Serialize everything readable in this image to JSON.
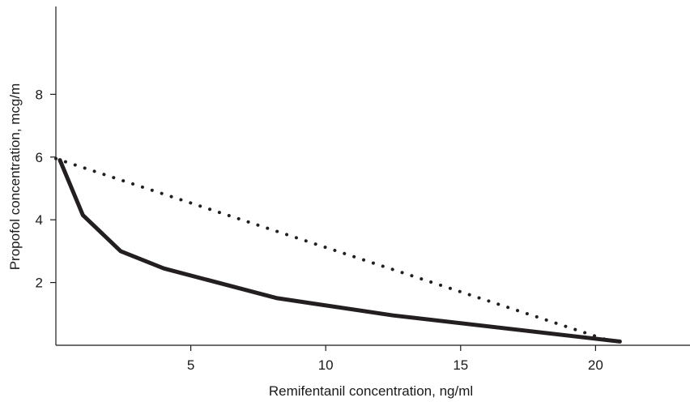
{
  "chart_data": {
    "type": "line",
    "xlabel": "Remifentanil concentration, ng/ml",
    "ylabel": "Propofol concentration, mcg/m",
    "xlim": [
      0,
      23.5
    ],
    "ylim": [
      0,
      10.8
    ],
    "x_ticks": [
      5,
      10,
      15,
      20
    ],
    "y_ticks": [
      2,
      4,
      6,
      8
    ],
    "grid": false,
    "legend": "none",
    "series": [
      {
        "style": "solid",
        "color": "#231f20",
        "points": [
          [
            0.15,
            5.9
          ],
          [
            1.0,
            4.15
          ],
          [
            2.4,
            3.0
          ],
          [
            4.0,
            2.45
          ],
          [
            8.2,
            1.5
          ],
          [
            12.5,
            0.95
          ],
          [
            20.9,
            0.12
          ]
        ]
      },
      {
        "style": "dotted",
        "color": "#231f20",
        "points": [
          [
            0.0,
            5.95
          ],
          [
            20.6,
            0.12
          ]
        ]
      }
    ]
  }
}
